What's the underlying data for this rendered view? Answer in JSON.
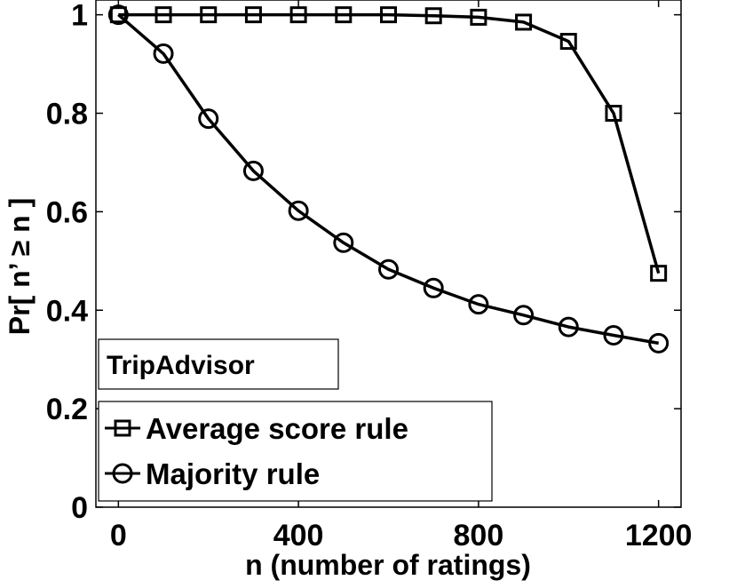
{
  "chart_data": {
    "type": "line",
    "xlabel": "n (number of ratings)",
    "ylabel": "Pr[ n’ ≥ n ]",
    "annotation": "TripAdvisor",
    "xlim": [
      -50,
      1250
    ],
    "ylim": [
      0,
      1.03
    ],
    "xticks": [
      0,
      400,
      800,
      1200
    ],
    "xtick_labels": [
      "0",
      "400",
      "800",
      "1200"
    ],
    "yticks": [
      0,
      0.2,
      0.4,
      0.6,
      0.8,
      1
    ],
    "ytick_labels": [
      "0",
      "0.2",
      "0.4",
      "0.6",
      "0.8",
      "1"
    ],
    "grid": false,
    "legend_position": "bottom-left",
    "x": [
      0,
      100,
      200,
      300,
      400,
      500,
      600,
      700,
      800,
      900,
      1000,
      1100,
      1200
    ],
    "series": [
      {
        "name": "Average score rule",
        "marker": "square",
        "color": "#000000",
        "values": [
          1.0,
          1.0,
          1.0,
          1.0,
          1.0,
          1.0,
          1.0,
          0.998,
          0.995,
          0.985,
          0.946,
          0.8,
          0.475
        ]
      },
      {
        "name": "Majority rule",
        "marker": "circle",
        "color": "#000000",
        "values": [
          1.0,
          0.921,
          0.789,
          0.683,
          0.602,
          0.537,
          0.483,
          0.445,
          0.412,
          0.39,
          0.366,
          0.349,
          0.333
        ]
      }
    ]
  }
}
